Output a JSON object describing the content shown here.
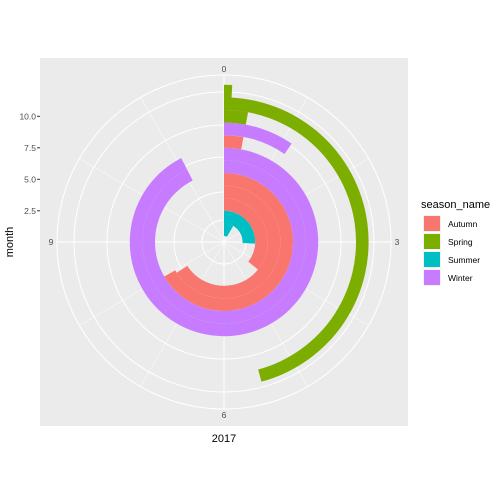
{
  "chart_data": {
    "type": "polar-bar",
    "coord": "polar (theta = y)",
    "xlabel": "2017",
    "ylabel": "month",
    "theta_ticks": [
      "0",
      "3",
      "6",
      "9"
    ],
    "theta_range": [
      0,
      12
    ],
    "radial_ticks": [
      "2.5",
      "5.0",
      "7.5",
      "10.0"
    ],
    "radial_range": [
      0.5,
      12.5
    ],
    "legend": {
      "title": "season_name",
      "position": "right",
      "entries": [
        {
          "label": "Autumn",
          "color": "#F8766D"
        },
        {
          "label": "Spring",
          "color": "#7CAE00"
        },
        {
          "label": "Summer",
          "color": "#00BFC4"
        },
        {
          "label": "Winter",
          "color": "#C77CFF"
        }
      ]
    },
    "bars": [
      {
        "month": 1,
        "season": "Summer",
        "value": 1.0
      },
      {
        "month": 2,
        "season": "Summer",
        "value": 3.1
      },
      {
        "month": 3,
        "season": "Autumn",
        "value": 4.3
      },
      {
        "month": 4,
        "season": "Autumn",
        "value": 7.9
      },
      {
        "month": 5,
        "season": "Autumn",
        "value": 8.0
      },
      {
        "month": 6,
        "season": "Winter",
        "value": 11.1
      },
      {
        "month": 7,
        "season": "Winter",
        "value": 11.1
      },
      {
        "month": 8,
        "season": "Autumn",
        "value": 0.35
      },
      {
        "month": 9,
        "season": "Winter",
        "value": 1.15
      },
      {
        "month": 10,
        "season": "Spring",
        "value": 0.35
      },
      {
        "month": 11,
        "season": "Spring",
        "value": 5.5
      },
      {
        "month": 12,
        "season": "Spring",
        "value": 0.1
      }
    ]
  }
}
